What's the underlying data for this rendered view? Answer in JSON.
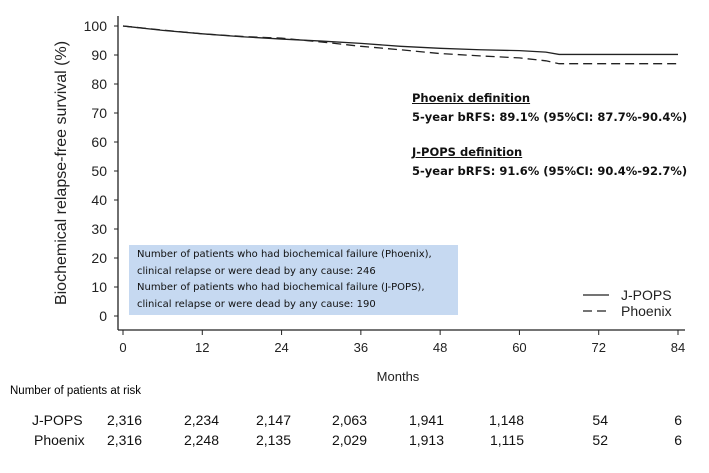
{
  "chart_data": {
    "type": "line",
    "subtype": "kaplan-meier",
    "xlabel": "Months",
    "ylabel": "Biochemical relapse-free survival (%)",
    "xlim": [
      0,
      84
    ],
    "ylim": [
      0,
      100
    ],
    "xticks": [
      0,
      12,
      24,
      36,
      48,
      60,
      72,
      84
    ],
    "yticks": [
      0,
      10,
      20,
      30,
      40,
      50,
      60,
      70,
      80,
      90,
      100
    ],
    "legend_position": "bottom-right",
    "series": [
      {
        "name": "J-POPS",
        "style": "solid",
        "x": [
          0,
          6,
          12,
          18,
          24,
          30,
          36,
          42,
          48,
          54,
          60,
          64,
          66,
          84
        ],
        "y": [
          100,
          98.5,
          97.3,
          96.3,
          95.5,
          94.8,
          94.0,
          93.0,
          92.3,
          91.8,
          91.5,
          91.0,
          90.2,
          90.2
        ]
      },
      {
        "name": "Phoenix",
        "style": "dashed",
        "x": [
          0,
          6,
          12,
          18,
          24,
          30,
          36,
          42,
          48,
          54,
          60,
          64,
          66,
          84
        ],
        "y": [
          100,
          98.6,
          97.3,
          96.4,
          95.8,
          94.5,
          93.0,
          91.8,
          90.5,
          89.7,
          89.0,
          88.0,
          87.0,
          87.0
        ]
      }
    ],
    "annotations": {
      "phoenix_title": "Phoenix definition",
      "phoenix_text": "5-year bRFS: 89.1% (95%CI: 87.7%-90.4%)",
      "jpops_title": "J-POPS definition",
      "jpops_text": "5-year bRFS: 91.6% (95%CI: 90.4%-92.7%)",
      "box_lines": [
        "Number of patients who had biochemical failure (Phoenix),",
        "clinical relapse or were dead by any cause: 246",
        "Number of patients who had biochemical failure (J-POPS),",
        "clinical relapse or were dead by any cause: 190"
      ]
    },
    "risk_table": {
      "title": "Number of patients at risk",
      "rows": [
        {
          "label": "J-POPS",
          "values": [
            "2,316",
            "2,234",
            "2,147",
            "2,063",
            "1,941",
            "1,148",
            "54",
            "6"
          ]
        },
        {
          "label": "Phoenix",
          "values": [
            "2,316",
            "2,248",
            "2,135",
            "2,029",
            "1,913",
            "1,115",
            "52",
            "6"
          ]
        }
      ]
    }
  }
}
